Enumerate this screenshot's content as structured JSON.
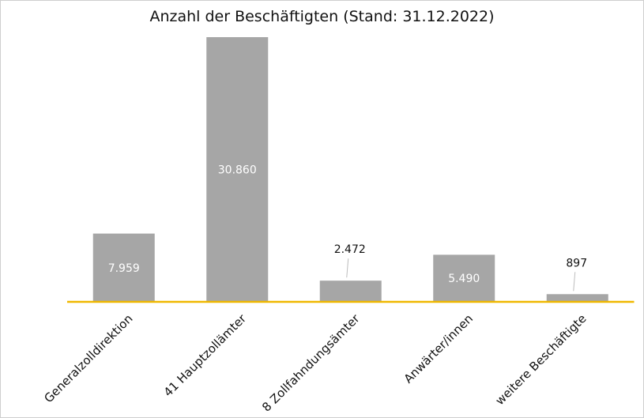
{
  "chart_data": {
    "type": "bar",
    "title": "Anzahl der Beschäftigten (Stand: 31.12.2022)",
    "categories": [
      "Generalzolldirektion",
      "41 Hauptzollämter",
      "8 Zollfahndungsämter",
      "Anwärter/innen",
      "weitere Beschäftigte"
    ],
    "values": [
      7959,
      30860,
      2472,
      5490,
      897
    ],
    "data_labels": [
      "7.959",
      "30.860",
      "2.472",
      "5.490",
      "897"
    ],
    "xlabel": "",
    "ylabel": "",
    "ylim": [
      0,
      30860
    ],
    "grid": false,
    "legend": "none",
    "bar_color": "#a6a6a6",
    "axis_color": "#f0b800"
  }
}
